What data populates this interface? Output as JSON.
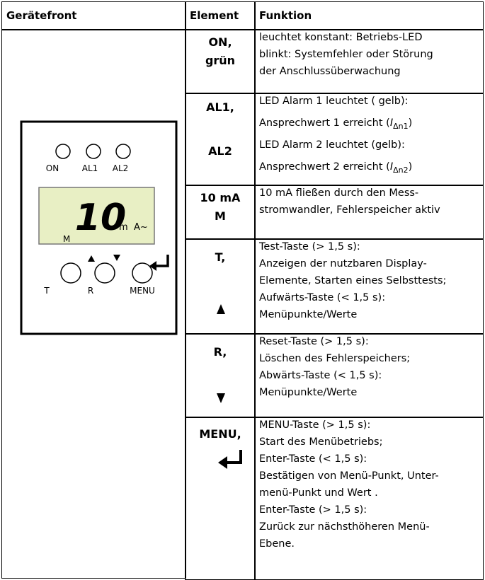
{
  "header": [
    "Gerätefront",
    "Element",
    "Funktion"
  ],
  "device": {
    "leds": [
      "ON",
      "AL1",
      "AL2"
    ],
    "display": {
      "value": "10",
      "prefix": "m",
      "unit": "A~",
      "mode": "M"
    },
    "buttons": [
      "T",
      "R",
      "MENU"
    ]
  },
  "rows": [
    {
      "element": [
        "ON,",
        "grün"
      ],
      "function": [
        "leuchtet konstant: Betriebs-LED",
        "blinkt: Systemfehler oder Störung",
        "der Anschlussüberwachung"
      ]
    },
    {
      "element": [
        "AL1,",
        "AL2"
      ],
      "function": [
        "LED Alarm 1 leuchtet ( gelb):",
        {
          "text": "Ansprechwert 1 erreicht  (",
          "symbol": "I",
          "subscript": "Δn1",
          "suffix": ")"
        },
        "LED Alarm 2 leuchtet (gelb):",
        {
          "text": "Ansprechwert 2 erreicht  (",
          "symbol": "I",
          "subscript": "Δn2",
          "suffix": ")"
        }
      ]
    },
    {
      "element": [
        "10 mA",
        "M"
      ],
      "function": [
        "10 mA fließen durch den Mess-",
        "stromwandler, Fehlerspeicher aktiv"
      ]
    },
    {
      "element": [
        "T,"
      ],
      "function": [
        "Test-Taste (> 1,5 s):",
        "Anzeigen der nutzbaren Display-",
        "Elemente, Starten eines Selbsttests;",
        "Aufwärts-Taste (< 1,5 s):",
        "Menüpunkte/Werte"
      ]
    },
    {
      "element": [
        "R,"
      ],
      "function": [
        "Reset-Taste (> 1,5 s):",
        "Löschen des Fehlerspeichers;",
        "Abwärts-Taste (< 1,5 s):",
        "Menüpunkte/Werte"
      ]
    },
    {
      "element": [
        "MENU,"
      ],
      "function": [
        "MENU-Taste (> 1,5 s):",
        "Start des Menübetriebs;",
        "Enter-Taste (< 1,5 s):",
        "Bestätigen von Menü-Punkt, Unter-",
        "menü-Punkt und Wert .",
        "Enter-Taste (> 1,5 s):",
        "Zurück zur nächsthöheren Menü-",
        "Ebene."
      ]
    }
  ]
}
